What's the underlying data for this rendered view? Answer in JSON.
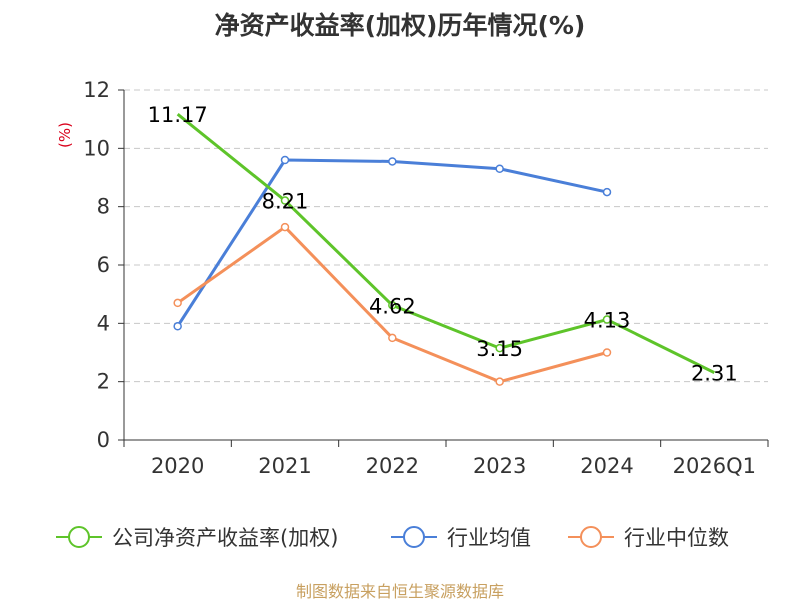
{
  "title": "净资产收益率(加权)历年情况(%)",
  "unit": "(%)",
  "source": "制图数据来自恒生聚源数据库",
  "colors": {
    "company": "#5ec42a",
    "industry_avg": "#4a7fd8",
    "industry_median": "#f4905a",
    "grid": "#c8c8c8",
    "axis": "#333333"
  },
  "chart_data": {
    "type": "line",
    "title": "净资产收益率(加权)历年情况(%)",
    "ylabel": "(%)",
    "xlabel": "",
    "categories": [
      "2020",
      "2021",
      "2022",
      "2023",
      "2024",
      "2026Q1"
    ],
    "ylim": [
      0,
      12
    ],
    "yticks": [
      0,
      2,
      4,
      6,
      8,
      10,
      12
    ],
    "grid": true,
    "legend": "bottom",
    "series": [
      {
        "name": "公司净资产收益率(加权)",
        "key": "company",
        "values": [
          11.17,
          8.21,
          4.62,
          3.15,
          4.13,
          2.31
        ],
        "labels": [
          "11.17",
          "8.21",
          "4.62",
          "3.15",
          "4.13",
          "2.31"
        ]
      },
      {
        "name": "行业均值",
        "key": "industry_avg",
        "values": [
          3.9,
          9.6,
          9.55,
          9.3,
          8.5,
          null
        ]
      },
      {
        "name": "行业中位数",
        "key": "industry_median",
        "values": [
          4.7,
          7.3,
          3.5,
          2.0,
          3.0,
          null
        ]
      }
    ]
  }
}
